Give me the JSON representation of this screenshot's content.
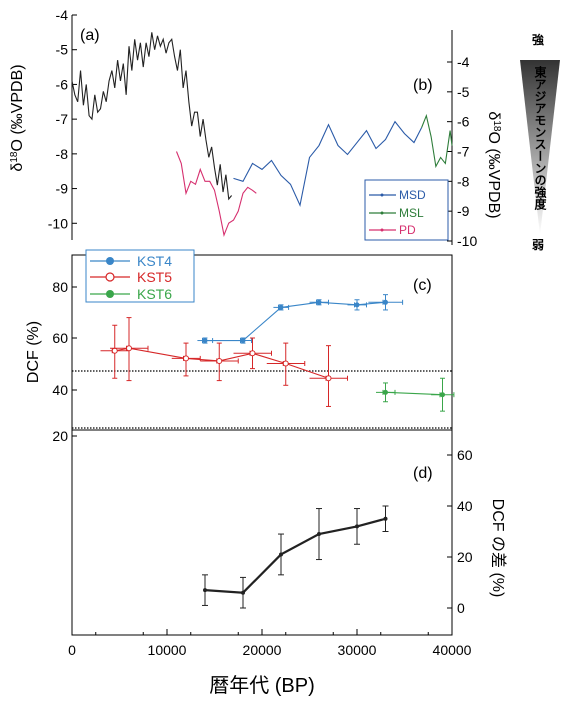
{
  "chart_data": [
    {
      "id": "a",
      "type": "line",
      "panel_label": "(a)",
      "ylabel_parts": [
        "δ",
        "18",
        "O (‰VPDB)"
      ],
      "ylim": [
        -4,
        -11
      ],
      "y_ticks": [
        "-4",
        "-5",
        "-6",
        "-7",
        "-8",
        "-9",
        "-10"
      ],
      "series": [
        {
          "color": "#222222",
          "x": [
            0,
            300,
            600,
            900,
            1200,
            1500,
            1800,
            2100,
            2400,
            2700,
            3000,
            3300,
            3600,
            3900,
            4200,
            4500,
            4800,
            5100,
            5400,
            5700,
            6000,
            6300,
            6600,
            6900,
            7200,
            7500,
            7800,
            8100,
            8400,
            8700,
            9000,
            9300,
            9600,
            9900,
            10200,
            10500,
            10800,
            11100,
            11400,
            11700,
            12000,
            12300,
            12600,
            12900,
            13200,
            13500,
            13800,
            14100,
            14400,
            14700,
            15000,
            15300,
            15600,
            15900,
            16200,
            16500,
            16800
          ],
          "y": [
            -5.9,
            -6.3,
            -6.5,
            -5.6,
            -6.6,
            -6.0,
            -6.9,
            -7.0,
            -6.3,
            -6.8,
            -6.7,
            -6.2,
            -6.5,
            -5.9,
            -5.6,
            -6.1,
            -5.3,
            -5.9,
            -5.4,
            -6.3,
            -4.9,
            -5.6,
            -4.7,
            -5.3,
            -4.8,
            -5.5,
            -4.8,
            -5.2,
            -4.5,
            -5.0,
            -4.6,
            -4.9,
            -4.7,
            -5.1,
            -4.8,
            -4.7,
            -5.2,
            -5.6,
            -5.0,
            -6.1,
            -5.6,
            -6.5,
            -7.2,
            -6.8,
            -6.8,
            -7.5,
            -7.0,
            -7.6,
            -8.1,
            -7.8,
            -8.4,
            -8.9,
            -8.3,
            -9.1,
            -8.6,
            -9.3,
            -9.2
          ]
        }
      ]
    },
    {
      "id": "b",
      "type": "line",
      "panel_label": "(b)",
      "ylabel_parts": [
        "δ",
        "18",
        "O (‰VPDB)"
      ],
      "ylim": [
        -3.4,
        -10.3
      ],
      "y_ticks": [
        "-4",
        "-5",
        "-6",
        "-7",
        "-8",
        "-9",
        "-10"
      ],
      "legend": [
        "MSD",
        "MSL",
        "PD"
      ],
      "series": [
        {
          "name": "MSD",
          "color": "#2b5ba8",
          "x": [
            17000,
            18000,
            19000,
            20000,
            21000,
            22000,
            23000,
            24000,
            25000,
            26000,
            27000,
            28000,
            29000,
            30000,
            31000,
            32000,
            33000,
            34000,
            35000,
            36000,
            36800
          ],
          "y": [
            -7.9,
            -8.0,
            -7.4,
            -7.6,
            -7.3,
            -7.8,
            -8.1,
            -8.8,
            -7.2,
            -6.8,
            -6.1,
            -6.8,
            -7.1,
            -6.7,
            -6.3,
            -6.9,
            -6.6,
            -6.0,
            -6.4,
            -6.7,
            -6.2
          ]
        },
        {
          "name": "MSL",
          "color": "#2e7d3a",
          "x": [
            36800,
            37300,
            37800,
            38300,
            38800,
            39300,
            39800,
            40000
          ],
          "y": [
            -6.2,
            -5.8,
            -6.5,
            -7.5,
            -7.2,
            -7.4,
            -6.3,
            -6.8
          ]
        },
        {
          "name": "PD",
          "color": "#d6306f",
          "x": [
            11000,
            11500,
            12000,
            12500,
            13000,
            13500,
            14000,
            14500,
            15000,
            15500,
            16000,
            16500,
            17000,
            17500,
            18000,
            18500,
            19000,
            19400
          ],
          "y": [
            -7.0,
            -7.4,
            -8.4,
            -8.0,
            -8.1,
            -7.6,
            -8.0,
            -8.0,
            -8.3,
            -9.0,
            -9.8,
            -9.4,
            -9.3,
            -9.0,
            -8.4,
            -8.2,
            -8.3,
            -8.4
          ]
        }
      ]
    },
    {
      "id": "c",
      "type": "scatter",
      "panel_label": "(c)",
      "ylabel": "DCF (%)",
      "ylim": [
        20,
        90
      ],
      "y_ticks": [
        "20",
        "40",
        "60",
        "80"
      ],
      "legend": [
        "KST4",
        "KST5",
        "KST6"
      ],
      "series": [
        {
          "name": "KST4",
          "color": "#3a86c8",
          "x": [
            14000,
            18000,
            22000,
            26000,
            30000,
            33000
          ],
          "y": [
            59,
            59,
            72,
            74,
            73,
            74
          ],
          "xerr": [
            800,
            900,
            800,
            1000,
            1000,
            1800
          ],
          "yerr": [
            1,
            1,
            1,
            1,
            2,
            3
          ]
        },
        {
          "name": "KST5",
          "color": "#d62728",
          "x": [
            4500,
            6000,
            12000,
            15500,
            19000,
            22500,
            27000
          ],
          "y": [
            55,
            56,
            52,
            51,
            54,
            50,
            45
          ],
          "xerr": [
            1500,
            2000,
            1500,
            2000,
            2000,
            2000,
            2000
          ],
          "yerr": [
            10,
            12,
            6,
            7,
            6,
            8,
            12
          ]
        },
        {
          "name": "KST6",
          "color": "#3aa64a",
          "x": [
            33000,
            39000
          ],
          "y": [
            39,
            38
          ],
          "xerr": [
            1000,
            1200
          ],
          "yerr": [
            4,
            7
          ]
        }
      ]
    },
    {
      "id": "d",
      "type": "line",
      "panel_label": "(d)",
      "ylabel": "DCF の差 (%)",
      "ylim": [
        -10,
        70
      ],
      "y_ticks": [
        "0",
        "20",
        "40",
        "60"
      ],
      "series": [
        {
          "color": "#222222",
          "x": [
            14000,
            18000,
            22000,
            26000,
            30000,
            33000
          ],
          "y": [
            7,
            6,
            21,
            29,
            32,
            35
          ],
          "yerr": [
            6,
            6,
            8,
            10,
            7,
            5
          ]
        }
      ]
    }
  ],
  "x_axis": {
    "label": "暦年代 (BP)",
    "xlim": [
      0,
      40000
    ],
    "ticks": [
      "0",
      "10000",
      "20000",
      "30000",
      "40000"
    ]
  },
  "monsoon_indicator": {
    "strong": "強",
    "weak": "弱",
    "label": "東アジアモンスーンの強度"
  }
}
